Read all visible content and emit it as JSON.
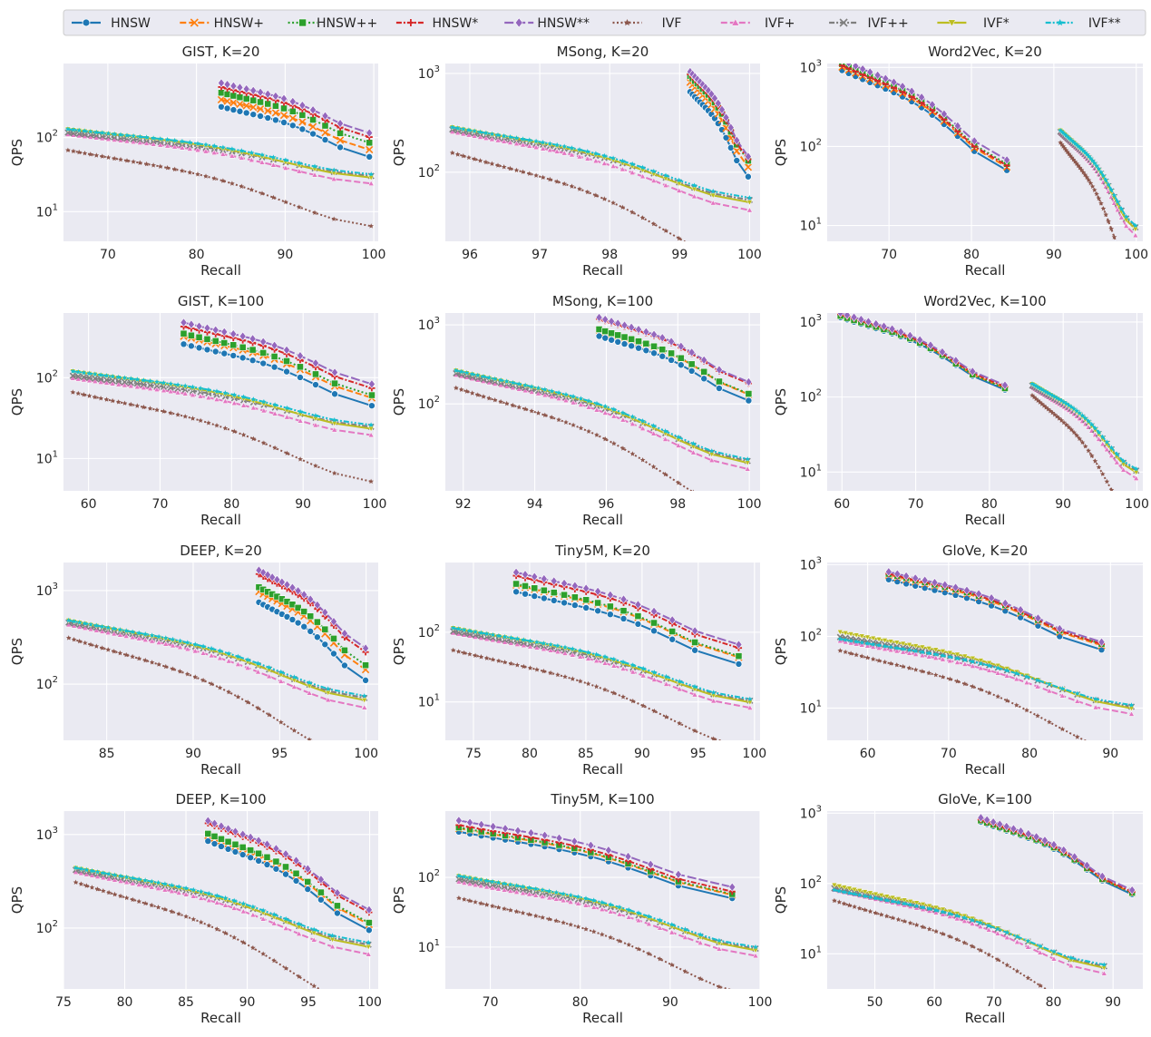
{
  "legend": {
    "location": "top-center",
    "entries": [
      {
        "name": "HNSW",
        "color": "#1f77b4",
        "marker": "circle",
        "dash": "solid"
      },
      {
        "name": "HNSW+",
        "color": "#ff7f0e",
        "marker": "x",
        "dash": "dashed"
      },
      {
        "name": "HNSW++",
        "color": "#2ca02c",
        "marker": "square",
        "dash": "dotted"
      },
      {
        "name": "HNSW*",
        "color": "#d62728",
        "marker": "plus",
        "dash": "dashdot"
      },
      {
        "name": "HNSW**",
        "color": "#9467bd",
        "marker": "diamond",
        "dash": "longdash"
      },
      {
        "name": "IVF",
        "color": "#8c564b",
        "marker": "star",
        "dash": "dotted"
      },
      {
        "name": "IVF+",
        "color": "#e377c2",
        "marker": "triangle-up",
        "dash": "dashed"
      },
      {
        "name": "IVF++",
        "color": "#7f7f7f",
        "marker": "x",
        "dash": "dashdot"
      },
      {
        "name": "IVF*",
        "color": "#bcbd22",
        "marker": "triangle-down",
        "dash": "solid"
      },
      {
        "name": "IVF**",
        "color": "#17becf",
        "marker": "star",
        "dash": "dashdotdot"
      }
    ]
  },
  "chart_data": [
    {
      "type": "line",
      "title": "GIST, K=20",
      "xlabel": "Recall",
      "ylabel": "QPS",
      "xlim": [
        65,
        100.5
      ],
      "xticks": [
        70,
        80,
        90,
        100
      ],
      "ylog": [
        0.6,
        3
      ],
      "ytick_exps": [
        1,
        2
      ],
      "hnsw": {
        "start": 82.8,
        "end": 99.5,
        "y0": 260,
        "y1": 55,
        "ratios": [
          1,
          1.25,
          1.55,
          1.85,
          2.1
        ]
      },
      "ivf": {
        "start": 65.5,
        "end": 99.7,
        "y0": 130,
        "y1": 32,
        "ratios": [
          0.52,
          0.85,
          0.9,
          1,
          1,
          1
        ]
      }
    },
    {
      "type": "line",
      "title": "MSong, K=20",
      "xlabel": "Recall",
      "ylabel": "QPS",
      "xlim": [
        95.65,
        100.15
      ],
      "xticks": [
        96,
        97,
        98,
        99,
        100
      ],
      "ylog": [
        1.3,
        3.1
      ],
      "ytick_exps": [
        2,
        3
      ],
      "hnsw": {
        "start": 99.15,
        "end": 99.98,
        "y0": 650,
        "y1": 90,
        "ratios": [
          1,
          1.25,
          1.45,
          1.5,
          1.6
        ]
      },
      "ivf": {
        "start": 95.75,
        "end": 100,
        "y0": 285,
        "y1": 55,
        "ratios": [
          0.55,
          0.9,
          0.95,
          1,
          1,
          1
        ]
      }
    },
    {
      "type": "line",
      "title": "Word2Vec, K=20",
      "xlabel": "Recall",
      "ylabel": "QPS",
      "xlim": [
        62.5,
        100.8
      ],
      "xticks": [
        70,
        80,
        90,
        100
      ],
      "ylog": [
        0.8,
        3.05
      ],
      "ytick_exps": [
        1,
        2,
        3
      ],
      "hnsw": {
        "start": 64.3,
        "end": 84.3,
        "y0": 920,
        "y1": 50,
        "ratios": [
          1,
          1.1,
          1.2,
          1.15,
          1.35
        ]
      },
      "ivf": {
        "start": 90.8,
        "end": 99.9,
        "y0": 160,
        "y1": 10,
        "ratios": [
          0.7,
          0.92,
          0.96,
          1,
          1,
          1
        ]
      }
    },
    {
      "type": "line",
      "title": "GIST, K=100",
      "xlabel": "Recall",
      "ylabel": "QPS",
      "xlim": [
        56.5,
        100.5
      ],
      "xticks": [
        60,
        70,
        80,
        90,
        100
      ],
      "ylog": [
        0.6,
        2.8
      ],
      "ytick_exps": [
        1,
        2
      ],
      "hnsw": {
        "start": 73.3,
        "end": 99.6,
        "y0": 260,
        "y1": 45,
        "ratios": [
          1,
          1.25,
          1.35,
          1.65,
          1.85
        ]
      },
      "ivf": {
        "start": 57.8,
        "end": 99.5,
        "y0": 120,
        "y1": 26,
        "ratios": [
          0.55,
          0.82,
          0.88,
          1,
          1,
          1
        ]
      }
    },
    {
      "type": "line",
      "title": "MSong, K=100",
      "xlabel": "Recall",
      "ylabel": "QPS",
      "xlim": [
        91.5,
        100.3
      ],
      "xticks": [
        92,
        94,
        96,
        98,
        100
      ],
      "ylog": [
        0.9,
        3.15
      ],
      "ytick_exps": [
        2,
        3
      ],
      "hnsw": {
        "start": 95.8,
        "end": 99.98,
        "y0": 720,
        "y1": 110,
        "ratios": [
          1,
          1.2,
          1.22,
          1.65,
          1.72
        ]
      },
      "ivf": {
        "start": 91.8,
        "end": 99.95,
        "y0": 265,
        "y1": 20,
        "ratios": [
          0.6,
          0.88,
          0.92,
          1,
          1,
          1
        ]
      }
    },
    {
      "type": "line",
      "title": "Word2Vec, K=100",
      "xlabel": "Recall",
      "ylabel": "QPS",
      "xlim": [
        58,
        100.8
      ],
      "xticks": [
        60,
        70,
        80,
        90,
        100
      ],
      "ylog": [
        0.75,
        3.12
      ],
      "ytick_exps": [
        1,
        2,
        3
      ],
      "hnsw": {
        "start": 59.8,
        "end": 82.1,
        "y0": 1150,
        "y1": 125,
        "ratios": [
          1,
          1.05,
          1.05,
          1.1,
          1.15
        ]
      },
      "ivf": {
        "start": 85.8,
        "end": 99.9,
        "y0": 150,
        "y1": 11,
        "ratios": [
          0.7,
          0.9,
          0.95,
          1,
          1,
          1
        ]
      }
    },
    {
      "type": "line",
      "title": "DEEP, K=20",
      "xlabel": "Recall",
      "ylabel": "QPS",
      "xlim": [
        82.5,
        100.7
      ],
      "xticks": [
        85,
        90,
        95,
        100
      ],
      "ylog": [
        1.4,
        3.3
      ],
      "ytick_exps": [
        2,
        3
      ],
      "hnsw": {
        "start": 93.8,
        "end": 99.97,
        "y0": 750,
        "y1": 110,
        "ratios": [
          1,
          1.3,
          1.45,
          2.0,
          2.2
        ]
      },
      "ivf": {
        "start": 82.8,
        "end": 99.9,
        "y0": 480,
        "y1": 75,
        "ratios": [
          0.65,
          0.9,
          0.95,
          1,
          1,
          1
        ]
      }
    },
    {
      "type": "line",
      "title": "Tiny5M, K=20",
      "xlabel": "Recall",
      "ylabel": "QPS",
      "xlim": [
        72.5,
        100.5
      ],
      "xticks": [
        75,
        80,
        85,
        90,
        95,
        100
      ],
      "ylog": [
        0.45,
        3.0
      ],
      "ytick_exps": [
        1,
        2
      ],
      "hnsw": {
        "start": 78.8,
        "end": 98.6,
        "y0": 380,
        "y1": 35,
        "ratios": [
          1,
          1.25,
          1.3,
          1.7,
          1.9
        ]
      },
      "ivf": {
        "start": 73.2,
        "end": 99.6,
        "y0": 115,
        "y1": 11,
        "ratios": [
          0.48,
          0.85,
          0.9,
          1,
          1,
          1
        ]
      }
    },
    {
      "type": "line",
      "title": "GloVe, K=20",
      "xlabel": "Recall",
      "ylabel": "QPS",
      "xlim": [
        55,
        94
      ],
      "xticks": [
        60,
        70,
        80,
        90
      ],
      "ylog": [
        0.55,
        3.03
      ],
      "ytick_exps": [
        1,
        2,
        3
      ],
      "hnsw": {
        "start": 62.6,
        "end": 88.9,
        "y0": 620,
        "y1": 65,
        "ratios": [
          1,
          1.15,
          1.2,
          1.2,
          1.28
        ]
      },
      "ivf": {
        "start": 56.6,
        "end": 92.6,
        "y0": 115,
        "y1": 11,
        "ratios": [
          0.55,
          0.75,
          0.85,
          1,
          0.8,
          0.75
        ]
      }
    },
    {
      "type": "line",
      "title": "DEEP, K=100",
      "xlabel": "Recall",
      "ylabel": "QPS",
      "xlim": [
        75,
        100.7
      ],
      "xticks": [
        75,
        80,
        85,
        90,
        95,
        100
      ],
      "ylog": [
        1.35,
        3.25
      ],
      "ytick_exps": [
        2,
        3
      ],
      "hnsw": {
        "start": 86.8,
        "end": 99.95,
        "y0": 850,
        "y1": 95,
        "ratios": [
          1,
          1.15,
          1.2,
          1.55,
          1.65
        ]
      },
      "ivf": {
        "start": 76,
        "end": 99.9,
        "y0": 440,
        "y1": 70,
        "ratios": [
          0.7,
          0.9,
          0.95,
          1,
          1,
          1
        ]
      }
    },
    {
      "type": "line",
      "title": "Tiny5M, K=100",
      "xlabel": "Recall",
      "ylabel": "QPS",
      "xlim": [
        65,
        100
      ],
      "xticks": [
        70,
        80,
        90,
        100
      ],
      "ylog": [
        0.4,
        2.95
      ],
      "ytick_exps": [
        1,
        2
      ],
      "hnsw": {
        "start": 66.5,
        "end": 96.9,
        "y0": 450,
        "y1": 50,
        "ratios": [
          1,
          1.12,
          1.15,
          1.25,
          1.45
        ]
      },
      "ivf": {
        "start": 66.5,
        "end": 99.5,
        "y0": 105,
        "y1": 10,
        "ratios": [
          0.48,
          0.82,
          0.9,
          1,
          1,
          1
        ]
      }
    },
    {
      "type": "line",
      "title": "GloVe, K=100",
      "xlabel": "Recall",
      "ylabel": "QPS",
      "xlim": [
        42,
        95
      ],
      "xticks": [
        50,
        60,
        70,
        80,
        90
      ],
      "ylog": [
        0.5,
        3.03
      ],
      "ytick_exps": [
        1,
        2,
        3
      ],
      "hnsw": {
        "start": 67.8,
        "end": 93.2,
        "y0": 750,
        "y1": 70,
        "ratios": [
          1,
          1.05,
          1.05,
          1.08,
          1.15
        ]
      },
      "ivf": {
        "start": 43.2,
        "end": 88.5,
        "y0": 95,
        "y1": 7,
        "ratios": [
          0.6,
          0.85,
          0.9,
          1,
          0.85,
          0.82
        ]
      }
    }
  ]
}
